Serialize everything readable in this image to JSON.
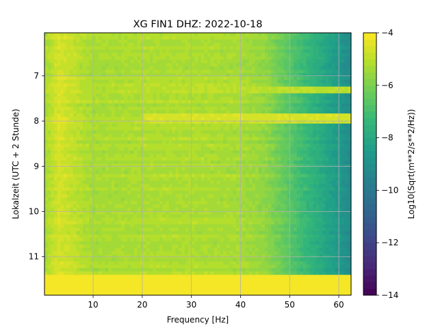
{
  "chart_data": {
    "type": "heatmap",
    "title": "XG FIN1  DHZ: 2022-10-18",
    "xlabel": "Frequency [Hz]",
    "ylabel": "Lokalzeit (UTC + 2 Stunde)",
    "colorbar_label": "Log10(Sqrt(m**2/s**2/Hz))",
    "colormap": "viridis",
    "grid": true,
    "xlim": [
      0.1,
      62.5
    ],
    "ylim": [
      11.85,
      6.05
    ],
    "y_inverted": true,
    "clim": [
      -14,
      -4
    ],
    "colorbar_levels": 40,
    "xticks": [
      10,
      20,
      30,
      40,
      50,
      60
    ],
    "yticks": [
      7,
      8,
      9,
      10,
      11
    ],
    "colorbar_ticks": [
      -4,
      -6,
      -8,
      -10,
      -12,
      -14
    ],
    "value_profile_by_frequency": [
      {
        "x": 0.5,
        "value": -5.2
      },
      {
        "x": 3,
        "value": -4.6
      },
      {
        "x": 6,
        "value": -4.9
      },
      {
        "x": 10,
        "value": -5.3
      },
      {
        "x": 20,
        "value": -5.2
      },
      {
        "x": 30,
        "value": -5.2
      },
      {
        "x": 40,
        "value": -5.3
      },
      {
        "x": 45,
        "value": -5.6
      },
      {
        "x": 50,
        "value": -6.6
      },
      {
        "x": 55,
        "value": -7.6
      },
      {
        "x": 60,
        "value": -8.6
      },
      {
        "x": 62.5,
        "value": -9.2
      }
    ],
    "saturated_band": {
      "y_start": 11.4,
      "y_end": 11.85,
      "value": -4
    },
    "bright_rows": [
      {
        "y": 7.3,
        "x_from": 30,
        "x_to": 62.5,
        "value": -5.0
      },
      {
        "y": 7.9,
        "x_from": 20,
        "x_to": 62.5,
        "value": -4.6
      },
      {
        "y": 8.0,
        "x_from": 20,
        "x_to": 62.5,
        "value": -4.7
      }
    ]
  }
}
